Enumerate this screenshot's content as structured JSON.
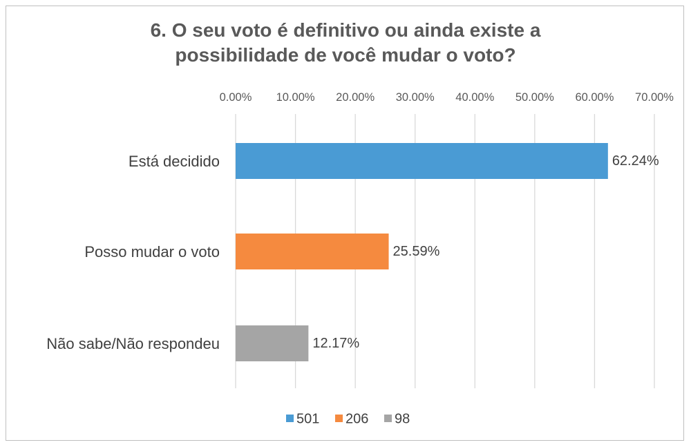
{
  "chart_data": {
    "type": "bar",
    "orientation": "horizontal",
    "title_lines": [
      "6. O seu voto é definitivo ou ainda existe a",
      "possibilidade de você mudar o voto?"
    ],
    "categories": [
      "Está decidido",
      "Posso mudar o voto",
      "Não sabe/Não respondeu"
    ],
    "series": [
      {
        "name": "501",
        "values": [
          62.24,
          null,
          null
        ],
        "color": "#4a9bd4"
      },
      {
        "name": "206",
        "values": [
          null,
          25.59,
          null
        ],
        "color": "#f58a3f"
      },
      {
        "name": "98",
        "values": [
          null,
          null,
          12.17
        ],
        "color": "#a5a5a5"
      }
    ],
    "data_labels": [
      "62.24%",
      "25.59%",
      "12.17%"
    ],
    "xlim": [
      0,
      70
    ],
    "x_ticks": [
      "0.00%",
      "10.00%",
      "20.00%",
      "30.00%",
      "40.00%",
      "50.00%",
      "60.00%",
      "70.00%"
    ],
    "x_axis_position": "top",
    "grid": true,
    "legend_position": "bottom"
  }
}
